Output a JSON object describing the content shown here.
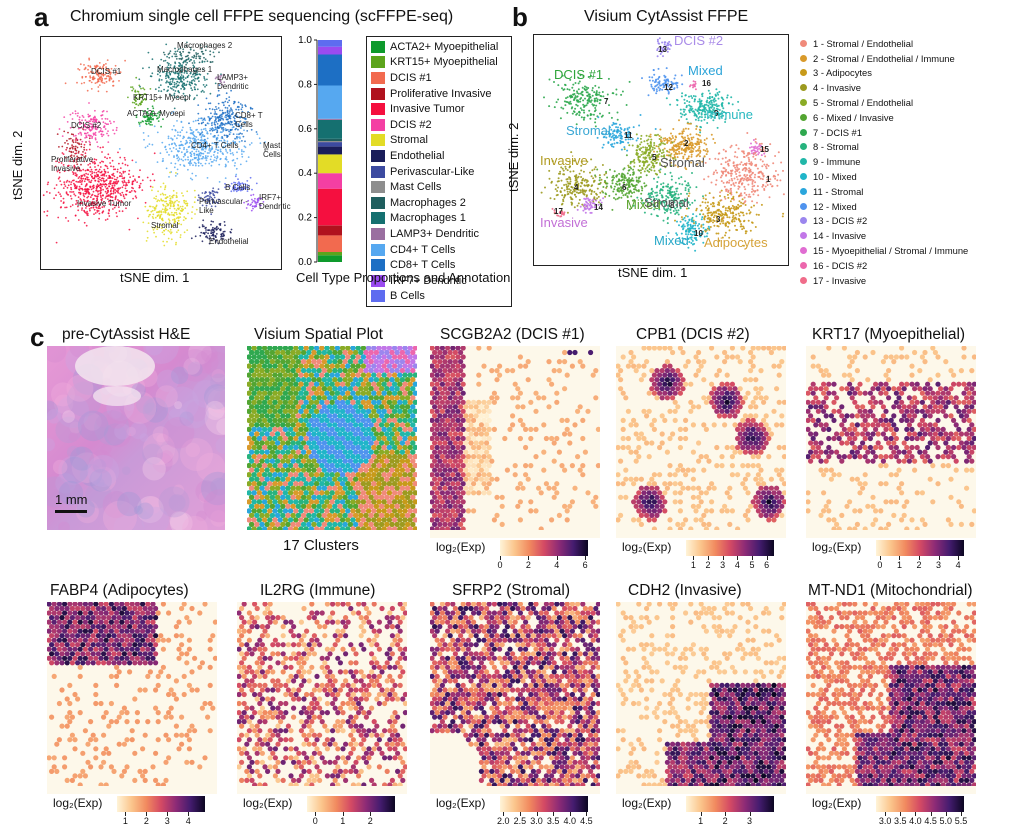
{
  "panel_a": {
    "letter": "a",
    "title": "Chromium single cell FFPE sequencing (scFFPE-seq)",
    "xlabel": "tSNE dim. 1",
    "ylabel": "tSNE dim. 2",
    "cluster_labels": [
      "Macrophages 2",
      "DCIS #1",
      "Macrophages 1",
      "LAMP3+ Dendritic",
      "KRT15+ Myoepi",
      "ACTA2+ Myoepi",
      "DCIS #2",
      "CD8+ T Cells",
      "CD4+ T Cells",
      "Mast Cells",
      "Proliferative Invasive",
      "Invasive Tumor",
      "B Cells",
      "IRF7+ Dendritic",
      "Perivascular -Like",
      "Stromal",
      "Endothelial"
    ],
    "bar_title": "Cell Type Proportions and Annotation",
    "bar_ticks": [
      "0.0",
      "0.2",
      "0.4",
      "0.6",
      "0.8",
      "1.0"
    ]
  },
  "chart_data": {
    "type": "bar",
    "title": "Cell Type Proportions and Annotation",
    "ylim": [
      0,
      1
    ],
    "stacked": true,
    "series": [
      {
        "name": "ACTA2+ Myoepithelial",
        "value": 0.03,
        "color": "#0e9a2c"
      },
      {
        "name": "KRT15+ Myoepithelial",
        "value": 0.015,
        "color": "#5ca41c"
      },
      {
        "name": "DCIS #1",
        "value": 0.075,
        "color": "#f26a4f"
      },
      {
        "name": "Proliferative Invasive",
        "value": 0.045,
        "color": "#b0121e"
      },
      {
        "name": "Invasive Tumor",
        "value": 0.165,
        "color": "#f50f3f"
      },
      {
        "name": "DCIS #2",
        "value": 0.07,
        "color": "#f43fa3"
      },
      {
        "name": "Stromal",
        "value": 0.085,
        "color": "#e3dc26"
      },
      {
        "name": "Endothelial",
        "value": 0.035,
        "color": "#1a1d5a"
      },
      {
        "name": "Perivascular-Like",
        "value": 0.02,
        "color": "#3c4aa0"
      },
      {
        "name": "Mast Cells",
        "value": 0.005,
        "color": "#8e8e8e"
      },
      {
        "name": "Macrophages 2",
        "value": 0.01,
        "color": "#1f5e5e"
      },
      {
        "name": "Macrophages 1",
        "value": 0.085,
        "color": "#157070"
      },
      {
        "name": "LAMP3+ Dendritic",
        "value": 0.005,
        "color": "#9a6fa0"
      },
      {
        "name": "CD4+ T Cells",
        "value": 0.15,
        "color": "#56a8f0"
      },
      {
        "name": "CD8+ T Cells",
        "value": 0.14,
        "color": "#1d6fc4"
      },
      {
        "name": "IRF7+ Dendritic",
        "value": 0.035,
        "color": "#9a4bf0"
      },
      {
        "name": "B Cells",
        "value": 0.03,
        "color": "#5e6cf0"
      }
    ]
  },
  "panel_b": {
    "letter": "b",
    "title": "Visium CytAssist FFPE",
    "xlabel": "tSNE dim. 1",
    "ylabel": "tSNE dim. 2",
    "plot_labels": [
      {
        "text": "DCIS #2",
        "color": "#a98be8"
      },
      {
        "text": "DCIS #1",
        "color": "#2fa53a"
      },
      {
        "text": "Mixed",
        "color": "#2aa3d8"
      },
      {
        "text": "Immune",
        "color": "#27b8c0"
      },
      {
        "text": "Stromal",
        "color": "#3aa7d4"
      },
      {
        "text": "Stromal",
        "color": "#555555"
      },
      {
        "text": "Invasive",
        "color": "#b09a20"
      },
      {
        "text": "Mixed",
        "color": "#5aa32c"
      },
      {
        "text": "Stromal",
        "color": "#555555"
      },
      {
        "text": "Invasive",
        "color": "#c26fd6"
      },
      {
        "text": "Mixed",
        "color": "#27a8c8"
      },
      {
        "text": "Adipocytes",
        "color": "#d6a33a"
      }
    ],
    "cluster_numbers": [
      "13",
      "16",
      "12",
      "9",
      "7",
      "11",
      "2",
      "5",
      "15",
      "1",
      "4",
      "6",
      "8",
      "3",
      "17",
      "14",
      "10"
    ],
    "legend": [
      {
        "label": "1 - Stromal / Endothelial",
        "color": "#f08a7a"
      },
      {
        "label": "2 - Stromal / Endothelial / Immune",
        "color": "#d99a2b"
      },
      {
        "label": "3 - Adipocytes",
        "color": "#c79a1a"
      },
      {
        "label": "4 - Invasive",
        "color": "#9c9a1f"
      },
      {
        "label": "5 - Stromal / Endothelial",
        "color": "#8aab26"
      },
      {
        "label": "6 - Mixed / Invasive",
        "color": "#53a532"
      },
      {
        "label": "7 - DCIS #1",
        "color": "#2fa84f"
      },
      {
        "label": "8 - Stromal",
        "color": "#27b37e"
      },
      {
        "label": "9 - Immune",
        "color": "#21b7a8"
      },
      {
        "label": "10 - Mixed",
        "color": "#20b5c9"
      },
      {
        "label": "11 - Stromal",
        "color": "#2aa6dc"
      },
      {
        "label": "12 - Mixed",
        "color": "#4f93ee"
      },
      {
        "label": "13 - DCIS #2",
        "color": "#9b86ee"
      },
      {
        "label": "14 - Invasive",
        "color": "#c277e8"
      },
      {
        "label": "15 - Myoepithelial / Stromal / Immune",
        "color": "#e06dd2"
      },
      {
        "label": "16 - DCIS #2",
        "color": "#ec67ad"
      },
      {
        "label": "17 - Invasive",
        "color": "#f06c8a"
      }
    ]
  },
  "panel_c": {
    "letter": "c",
    "he_title": "pre-CytAssist H&E",
    "scale_bar": "1 mm",
    "spatial_title": "Visium Spatial Plot",
    "spatial_caption": "17 Clusters",
    "cbar_label": "log₂(Exp)",
    "genes": [
      {
        "title": "SCGB2A2 (DCIS #1)",
        "ticks": [
          "0",
          "2",
          "4",
          "6"
        ],
        "range": [
          0,
          6.2
        ],
        "pattern": "left"
      },
      {
        "title": "CPB1 (DCIS #2)",
        "ticks": [
          "1",
          "2",
          "3",
          "4",
          "5",
          "6"
        ],
        "range": [
          0.5,
          6.5
        ],
        "pattern": "blobs"
      },
      {
        "title": "KRT17 (Myoepithelial)",
        "ticks": [
          "0",
          "1",
          "2",
          "3",
          "4"
        ],
        "range": [
          -0.2,
          4.3
        ],
        "pattern": "band"
      },
      {
        "title": "FABP4 (Adipocytes)",
        "ticks": [
          "1",
          "2",
          "3",
          "4"
        ],
        "range": [
          0.6,
          4.8
        ],
        "pattern": "topleft"
      },
      {
        "title": "IL2RG (Immune)",
        "ticks": [
          "0",
          "1",
          "2"
        ],
        "range": [
          -0.3,
          2.9
        ],
        "pattern": "sparse"
      },
      {
        "title": "SFRP2 (Stromal)",
        "ticks": [
          "2.0",
          "2.5",
          "3.0",
          "3.5",
          "4.0",
          "4.5"
        ],
        "range": [
          1.9,
          4.55
        ],
        "pattern": "ring"
      },
      {
        "title": "CDH2 (Invasive)",
        "ticks": [
          "1",
          "2",
          "3"
        ],
        "range": [
          0.4,
          4.0
        ],
        "pattern": "bottomright"
      },
      {
        "title": "MT-ND1 (Mitochondrial)",
        "ticks": [
          "3.0",
          "3.5",
          "4.0",
          "4.5",
          "5.0",
          "5.5"
        ],
        "range": [
          2.7,
          5.6
        ],
        "pattern": "bottomright2"
      }
    ]
  }
}
